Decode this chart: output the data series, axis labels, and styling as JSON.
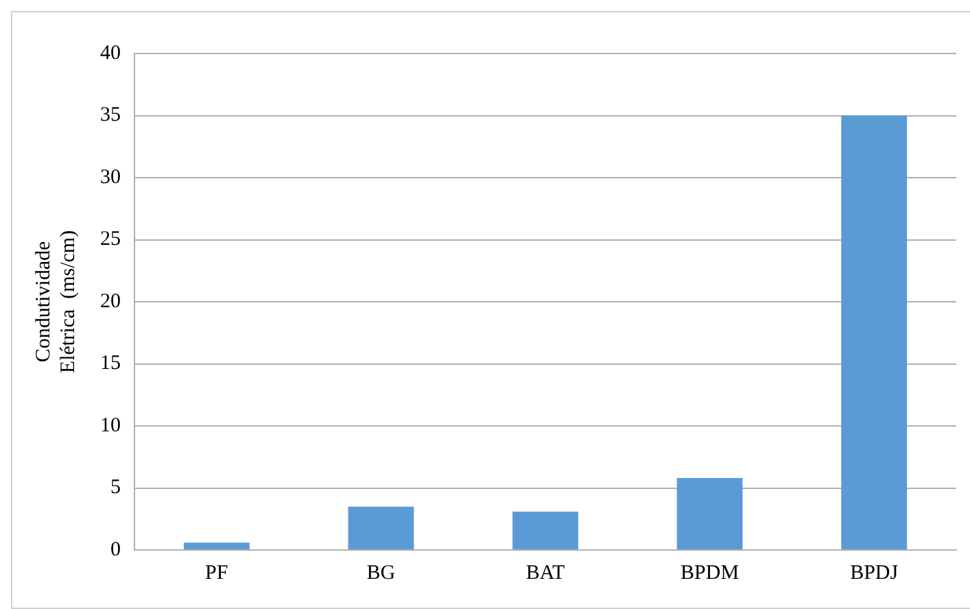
{
  "chart_data": {
    "type": "bar",
    "ylabel": "Condutividade\nElétrica  (ms/cm)",
    "categories": [
      "PF",
      "BG",
      "BAT",
      "BPDM",
      "BPDJ"
    ],
    "series": [
      {
        "color": "#5b9bd5",
        "values": [
          0.6,
          3.5,
          3.1,
          5.8,
          35
        ]
      }
    ],
    "ylim": [
      0,
      40
    ],
    "yticks": [
      0,
      5,
      10,
      15,
      20,
      25,
      30,
      35,
      40
    ],
    "grid": "y",
    "legend": false
  }
}
